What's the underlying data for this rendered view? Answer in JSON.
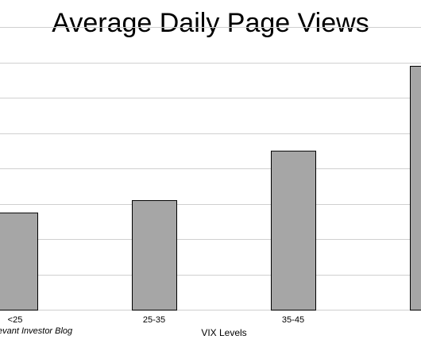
{
  "chart_data": {
    "type": "bar",
    "title": "Average Daily Page Views",
    "xlabel": "VIX Levels",
    "ylabel": "",
    "categories": [
      "<25",
      "25-35",
      "35-45",
      ""
    ],
    "values": [
      27.5,
      31,
      45,
      69
    ],
    "ylim": [
      0,
      80
    ],
    "grid": true,
    "legend": "none",
    "source_note": "evant Investor Blog",
    "colors": {
      "bar_fill": "#a6a6a6",
      "bar_stroke": "#000000",
      "grid": "#d0d0d0"
    }
  }
}
